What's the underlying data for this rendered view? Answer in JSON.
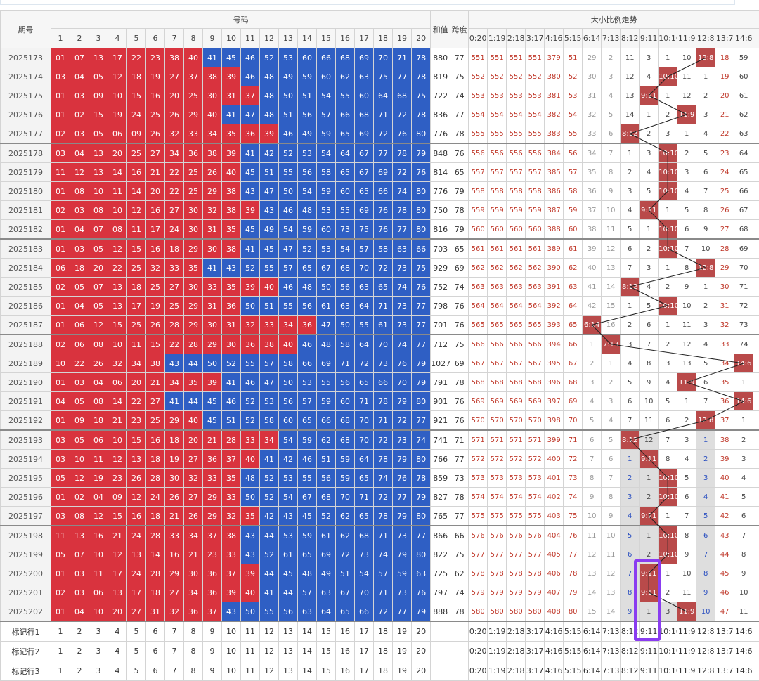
{
  "header": {
    "period": "期号",
    "numbers": "号码",
    "sum": "和值",
    "span": "跨度",
    "trend": "大小比例走势",
    "number_cols": [
      1,
      2,
      3,
      4,
      5,
      6,
      7,
      8,
      9,
      10,
      11,
      12,
      13,
      14,
      15,
      16,
      17,
      18,
      19,
      20
    ],
    "ratio_cols": [
      "0:20",
      "1:19",
      "2:18",
      "3:17",
      "4:16",
      "5:15",
      "6:14",
      "7:13",
      "8:12",
      "9:11",
      "10:10",
      "11:9",
      "12:8",
      "13:7",
      "14:6"
    ]
  },
  "rows": [
    {
      "period": "2025173",
      "numbers": [
        "01",
        "07",
        "13",
        "17",
        "22",
        "23",
        "38",
        "40",
        "41",
        "45",
        "46",
        "52",
        "53",
        "60",
        "66",
        "68",
        "69",
        "70",
        "71",
        "78"
      ],
      "sum": 880,
      "span": 77,
      "trend": [
        551,
        551,
        551,
        551,
        379,
        51,
        29,
        2,
        11,
        3,
        1,
        10,
        "12:8",
        18,
        59
      ]
    },
    {
      "period": "2025174",
      "numbers": [
        "03",
        "04",
        "05",
        "12",
        "18",
        "19",
        "27",
        "37",
        "38",
        "39",
        "46",
        "48",
        "49",
        "59",
        "60",
        "62",
        "63",
        "75",
        "77",
        "78"
      ],
      "sum": 819,
      "span": 75,
      "trend": [
        552,
        552,
        552,
        552,
        380,
        52,
        30,
        3,
        12,
        4,
        "10:10",
        11,
        1,
        19,
        60
      ]
    },
    {
      "period": "2025175",
      "numbers": [
        "01",
        "03",
        "09",
        "10",
        "15",
        "16",
        "20",
        "25",
        "30",
        "31",
        "37",
        "48",
        "50",
        "51",
        "54",
        "55",
        "60",
        "64",
        "68",
        "75"
      ],
      "sum": 722,
      "span": 74,
      "trend": [
        553,
        553,
        553,
        553,
        381,
        53,
        31,
        4,
        13,
        "9:11",
        1,
        12,
        2,
        20,
        61
      ]
    },
    {
      "period": "2025176",
      "numbers": [
        "01",
        "02",
        "15",
        "19",
        "24",
        "25",
        "26",
        "29",
        "40",
        "41",
        "47",
        "48",
        "51",
        "56",
        "57",
        "66",
        "68",
        "71",
        "72",
        "78"
      ],
      "sum": 836,
      "span": 77,
      "trend": [
        554,
        554,
        554,
        554,
        382,
        54,
        32,
        5,
        14,
        1,
        2,
        "11:9",
        3,
        21,
        62
      ]
    },
    {
      "period": "2025177",
      "numbers": [
        "02",
        "03",
        "05",
        "06",
        "09",
        "26",
        "32",
        "33",
        "34",
        "35",
        "36",
        "39",
        "46",
        "49",
        "59",
        "65",
        "69",
        "72",
        "76",
        "80"
      ],
      "sum": 776,
      "span": 78,
      "trend": [
        555,
        555,
        555,
        555,
        383,
        55,
        33,
        6,
        "8:12",
        2,
        3,
        1,
        4,
        22,
        63
      ]
    },
    {
      "period": "2025178",
      "numbers": [
        "03",
        "04",
        "13",
        "20",
        "25",
        "27",
        "34",
        "36",
        "38",
        "39",
        "41",
        "42",
        "52",
        "53",
        "54",
        "64",
        "67",
        "77",
        "78",
        "79"
      ],
      "sum": 848,
      "span": 76,
      "trend": [
        556,
        556,
        556,
        556,
        384,
        56,
        34,
        7,
        1,
        3,
        "10:10",
        2,
        5,
        23,
        64
      ]
    },
    {
      "period": "2025179",
      "numbers": [
        "11",
        "12",
        "13",
        "14",
        "16",
        "21",
        "22",
        "25",
        "26",
        "40",
        "45",
        "51",
        "55",
        "56",
        "58",
        "65",
        "67",
        "69",
        "72",
        "76"
      ],
      "sum": 814,
      "span": 65,
      "trend": [
        557,
        557,
        557,
        557,
        385,
        57,
        35,
        8,
        2,
        4,
        "10:10",
        3,
        6,
        24,
        65
      ]
    },
    {
      "period": "2025180",
      "numbers": [
        "01",
        "08",
        "10",
        "11",
        "14",
        "20",
        "22",
        "25",
        "29",
        "38",
        "43",
        "47",
        "50",
        "54",
        "59",
        "60",
        "65",
        "66",
        "74",
        "80"
      ],
      "sum": 776,
      "span": 79,
      "trend": [
        558,
        558,
        558,
        558,
        386,
        58,
        36,
        9,
        3,
        5,
        "10:10",
        4,
        7,
        25,
        66
      ]
    },
    {
      "period": "2025181",
      "numbers": [
        "02",
        "03",
        "08",
        "10",
        "12",
        "16",
        "27",
        "30",
        "32",
        "38",
        "39",
        "43",
        "46",
        "48",
        "53",
        "55",
        "69",
        "76",
        "78",
        "80"
      ],
      "sum": 750,
      "span": 78,
      "trend": [
        559,
        559,
        559,
        559,
        387,
        59,
        37,
        10,
        4,
        "9:11",
        1,
        5,
        8,
        26,
        67
      ]
    },
    {
      "period": "2025182",
      "numbers": [
        "01",
        "04",
        "07",
        "08",
        "11",
        "17",
        "24",
        "30",
        "31",
        "35",
        "45",
        "49",
        "54",
        "59",
        "60",
        "73",
        "75",
        "76",
        "77",
        "80"
      ],
      "sum": 816,
      "span": 79,
      "trend": [
        560,
        560,
        560,
        560,
        388,
        60,
        38,
        11,
        5,
        1,
        "10:10",
        6,
        9,
        27,
        68
      ]
    },
    {
      "period": "2025183",
      "numbers": [
        "01",
        "03",
        "05",
        "12",
        "15",
        "16",
        "18",
        "29",
        "30",
        "38",
        "41",
        "45",
        "47",
        "52",
        "53",
        "54",
        "57",
        "58",
        "63",
        "66"
      ],
      "sum": 703,
      "span": 65,
      "trend": [
        561,
        561,
        561,
        561,
        389,
        61,
        39,
        12,
        6,
        2,
        "10:10",
        7,
        10,
        28,
        69
      ]
    },
    {
      "period": "2025184",
      "numbers": [
        "06",
        "18",
        "20",
        "22",
        "25",
        "32",
        "33",
        "35",
        "41",
        "43",
        "52",
        "55",
        "57",
        "65",
        "67",
        "68",
        "70",
        "72",
        "73",
        "75"
      ],
      "sum": 929,
      "span": 69,
      "trend": [
        562,
        562,
        562,
        562,
        390,
        62,
        40,
        13,
        7,
        3,
        1,
        8,
        "12:8",
        29,
        70
      ]
    },
    {
      "period": "2025185",
      "numbers": [
        "02",
        "05",
        "07",
        "13",
        "18",
        "25",
        "27",
        "30",
        "33",
        "35",
        "39",
        "40",
        "46",
        "48",
        "50",
        "56",
        "63",
        "65",
        "74",
        "76"
      ],
      "sum": 752,
      "span": 74,
      "trend": [
        563,
        563,
        563,
        563,
        391,
        63,
        41,
        14,
        "8:12",
        4,
        2,
        9,
        1,
        30,
        71
      ]
    },
    {
      "period": "2025186",
      "numbers": [
        "01",
        "04",
        "05",
        "13",
        "17",
        "19",
        "25",
        "29",
        "31",
        "36",
        "50",
        "51",
        "55",
        "56",
        "61",
        "63",
        "64",
        "71",
        "73",
        "77"
      ],
      "sum": 798,
      "span": 76,
      "trend": [
        564,
        564,
        564,
        564,
        392,
        64,
        42,
        15,
        1,
        5,
        "10:10",
        10,
        2,
        31,
        72
      ]
    },
    {
      "period": "2025187",
      "numbers": [
        "01",
        "06",
        "12",
        "15",
        "25",
        "26",
        "28",
        "29",
        "30",
        "31",
        "32",
        "33",
        "34",
        "36",
        "47",
        "50",
        "55",
        "61",
        "73",
        "77"
      ],
      "sum": 701,
      "span": 76,
      "trend": [
        565,
        565,
        565,
        565,
        393,
        65,
        "6:14",
        16,
        2,
        6,
        1,
        11,
        3,
        32,
        73
      ]
    },
    {
      "period": "2025188",
      "numbers": [
        "02",
        "06",
        "08",
        "10",
        "11",
        "15",
        "22",
        "28",
        "29",
        "30",
        "36",
        "38",
        "40",
        "46",
        "48",
        "58",
        "64",
        "70",
        "74",
        "77"
      ],
      "sum": 712,
      "span": 75,
      "trend": [
        566,
        566,
        566,
        566,
        394,
        66,
        1,
        "7:13",
        3,
        7,
        2,
        12,
        4,
        33,
        74
      ]
    },
    {
      "period": "2025189",
      "numbers": [
        "10",
        "22",
        "26",
        "32",
        "34",
        "38",
        "43",
        "44",
        "50",
        "52",
        "55",
        "57",
        "58",
        "66",
        "69",
        "71",
        "72",
        "73",
        "76",
        "79"
      ],
      "sum": 1027,
      "span": 69,
      "trend": [
        567,
        567,
        567,
        567,
        395,
        67,
        2,
        1,
        4,
        8,
        3,
        13,
        5,
        34,
        "14:6"
      ]
    },
    {
      "period": "2025190",
      "numbers": [
        "01",
        "03",
        "04",
        "06",
        "20",
        "21",
        "34",
        "35",
        "39",
        "41",
        "46",
        "47",
        "50",
        "53",
        "55",
        "56",
        "65",
        "66",
        "70",
        "79"
      ],
      "sum": 791,
      "span": 78,
      "trend": [
        568,
        568,
        568,
        568,
        396,
        68,
        3,
        2,
        5,
        9,
        4,
        "11:9",
        6,
        35,
        1
      ]
    },
    {
      "period": "2025191",
      "numbers": [
        "04",
        "05",
        "08",
        "14",
        "22",
        "27",
        "41",
        "44",
        "45",
        "46",
        "52",
        "53",
        "56",
        "57",
        "59",
        "60",
        "71",
        "78",
        "79",
        "80"
      ],
      "sum": 901,
      "span": 76,
      "trend": [
        569,
        569,
        569,
        569,
        397,
        69,
        4,
        3,
        6,
        10,
        5,
        1,
        7,
        36,
        "14:6"
      ]
    },
    {
      "period": "2025192",
      "numbers": [
        "01",
        "09",
        "18",
        "21",
        "23",
        "25",
        "29",
        "40",
        "45",
        "51",
        "52",
        "58",
        "60",
        "65",
        "66",
        "68",
        "70",
        "71",
        "72",
        "77"
      ],
      "sum": 921,
      "span": 76,
      "trend": [
        570,
        570,
        570,
        570,
        398,
        70,
        5,
        4,
        7,
        11,
        6,
        2,
        "12:8",
        37,
        1
      ]
    },
    {
      "period": "2025193",
      "numbers": [
        "03",
        "05",
        "06",
        "10",
        "15",
        "16",
        "18",
        "20",
        "21",
        "28",
        "33",
        "34",
        "54",
        "59",
        "62",
        "68",
        "70",
        "72",
        "73",
        "74"
      ],
      "sum": 741,
      "span": 71,
      "trend": [
        571,
        571,
        571,
        571,
        399,
        71,
        6,
        5,
        "8:12",
        12,
        7,
        3,
        1,
        38,
        2
      ]
    },
    {
      "period": "2025194",
      "numbers": [
        "03",
        "10",
        "11",
        "12",
        "13",
        "18",
        "19",
        "27",
        "36",
        "37",
        "40",
        "41",
        "42",
        "46",
        "51",
        "59",
        "64",
        "78",
        "79",
        "80"
      ],
      "sum": 766,
      "span": 77,
      "trend": [
        572,
        572,
        572,
        572,
        400,
        72,
        7,
        6,
        1,
        "9:11",
        8,
        4,
        2,
        39,
        3
      ]
    },
    {
      "period": "2025195",
      "numbers": [
        "05",
        "12",
        "19",
        "23",
        "26",
        "28",
        "30",
        "32",
        "33",
        "35",
        "48",
        "52",
        "53",
        "55",
        "56",
        "59",
        "65",
        "74",
        "76",
        "78"
      ],
      "sum": 859,
      "span": 73,
      "trend": [
        573,
        573,
        573,
        573,
        401,
        73,
        8,
        7,
        2,
        1,
        "10:10",
        5,
        3,
        40,
        4
      ]
    },
    {
      "period": "2025196",
      "numbers": [
        "01",
        "02",
        "04",
        "09",
        "12",
        "24",
        "26",
        "27",
        "29",
        "33",
        "50",
        "52",
        "54",
        "67",
        "68",
        "70",
        "71",
        "72",
        "77",
        "79"
      ],
      "sum": 827,
      "span": 78,
      "trend": [
        574,
        574,
        574,
        574,
        402,
        74,
        9,
        8,
        3,
        2,
        "10:10",
        6,
        4,
        41,
        5
      ]
    },
    {
      "period": "2025197",
      "numbers": [
        "03",
        "08",
        "12",
        "15",
        "16",
        "18",
        "21",
        "26",
        "29",
        "32",
        "35",
        "42",
        "43",
        "45",
        "52",
        "62",
        "65",
        "78",
        "79",
        "80"
      ],
      "sum": 765,
      "span": 77,
      "trend": [
        575,
        575,
        575,
        575,
        403,
        75,
        10,
        9,
        4,
        "9:11",
        1,
        7,
        5,
        42,
        6
      ]
    },
    {
      "period": "2025198",
      "numbers": [
        "11",
        "13",
        "16",
        "21",
        "24",
        "28",
        "33",
        "34",
        "37",
        "38",
        "43",
        "44",
        "53",
        "59",
        "61",
        "62",
        "68",
        "71",
        "73",
        "77"
      ],
      "sum": 866,
      "span": 66,
      "trend": [
        576,
        576,
        576,
        576,
        404,
        76,
        11,
        10,
        5,
        1,
        "10:10",
        8,
        6,
        43,
        7
      ]
    },
    {
      "period": "2025199",
      "numbers": [
        "05",
        "07",
        "10",
        "12",
        "13",
        "14",
        "16",
        "21",
        "23",
        "33",
        "43",
        "52",
        "61",
        "65",
        "69",
        "72",
        "73",
        "74",
        "79",
        "80"
      ],
      "sum": 822,
      "span": 75,
      "trend": [
        577,
        577,
        577,
        577,
        405,
        77,
        12,
        11,
        6,
        2,
        "10:10",
        9,
        7,
        44,
        8
      ]
    },
    {
      "period": "2025200",
      "numbers": [
        "01",
        "03",
        "11",
        "17",
        "24",
        "28",
        "29",
        "30",
        "36",
        "37",
        "39",
        "44",
        "45",
        "48",
        "49",
        "51",
        "54",
        "57",
        "59",
        "63"
      ],
      "sum": 725,
      "span": 62,
      "trend": [
        578,
        578,
        578,
        578,
        406,
        78,
        13,
        12,
        7,
        "9:11",
        1,
        10,
        8,
        45,
        9
      ]
    },
    {
      "period": "2025201",
      "numbers": [
        "02",
        "03",
        "06",
        "13",
        "17",
        "18",
        "27",
        "34",
        "36",
        "39",
        "40",
        "41",
        "44",
        "57",
        "63",
        "67",
        "70",
        "71",
        "73",
        "76"
      ],
      "sum": 797,
      "span": 74,
      "trend": [
        579,
        579,
        579,
        579,
        407,
        79,
        14,
        13,
        8,
        "9:11",
        2,
        11,
        9,
        46,
        10
      ]
    },
    {
      "period": "2025202",
      "numbers": [
        "01",
        "04",
        "10",
        "20",
        "27",
        "31",
        "32",
        "36",
        "37",
        "43",
        "50",
        "55",
        "56",
        "63",
        "64",
        "65",
        "66",
        "72",
        "77",
        "79"
      ],
      "sum": 888,
      "span": 78,
      "trend": [
        580,
        580,
        580,
        580,
        408,
        80,
        15,
        14,
        9,
        1,
        3,
        "11:9",
        10,
        47,
        11
      ]
    }
  ],
  "markers": [
    "标记行1",
    "标记行2",
    "标记行3"
  ]
}
